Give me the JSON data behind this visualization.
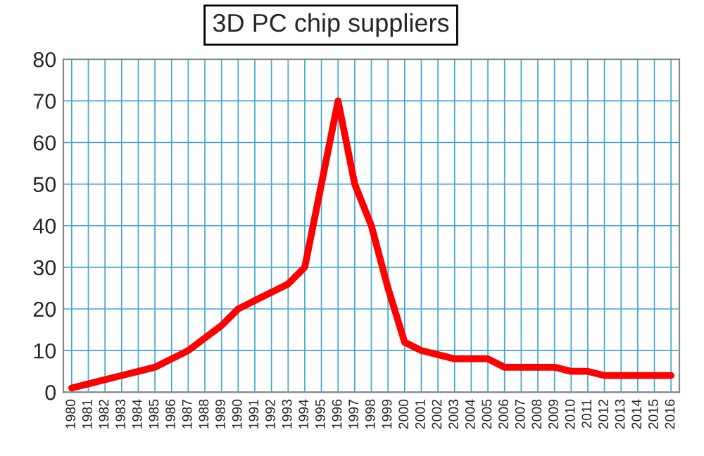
{
  "chart_data": {
    "type": "line",
    "title": "3D PC chip suppliers",
    "categories": [
      "1980",
      "1981",
      "1982",
      "1983",
      "1984",
      "1985",
      "1986",
      "1987",
      "1988",
      "1989",
      "1990",
      "1991",
      "1992",
      "1993",
      "1994",
      "1995",
      "1996",
      "1997",
      "1998",
      "1999",
      "2000",
      "2001",
      "2002",
      "2003",
      "2004",
      "2005",
      "2006",
      "2007",
      "2008",
      "2009",
      "2010",
      "2011",
      "2012",
      "2013",
      "2014",
      "2015",
      "2016"
    ],
    "series": [
      {
        "color": "#ff0000",
        "values": [
          1,
          2,
          3,
          4,
          5,
          6,
          8,
          10,
          13,
          16,
          20,
          22,
          24,
          26,
          30,
          50,
          70,
          50,
          40,
          25,
          12,
          10,
          9,
          8,
          8,
          8,
          6,
          6,
          6,
          6,
          5,
          5,
          4,
          4,
          4,
          4,
          4
        ]
      }
    ],
    "ylim": [
      0,
      80
    ],
    "yticks": [
      0,
      10,
      20,
      30,
      40,
      50,
      60,
      70,
      80
    ],
    "grid": true,
    "marker": "none",
    "line_style": "solid"
  }
}
